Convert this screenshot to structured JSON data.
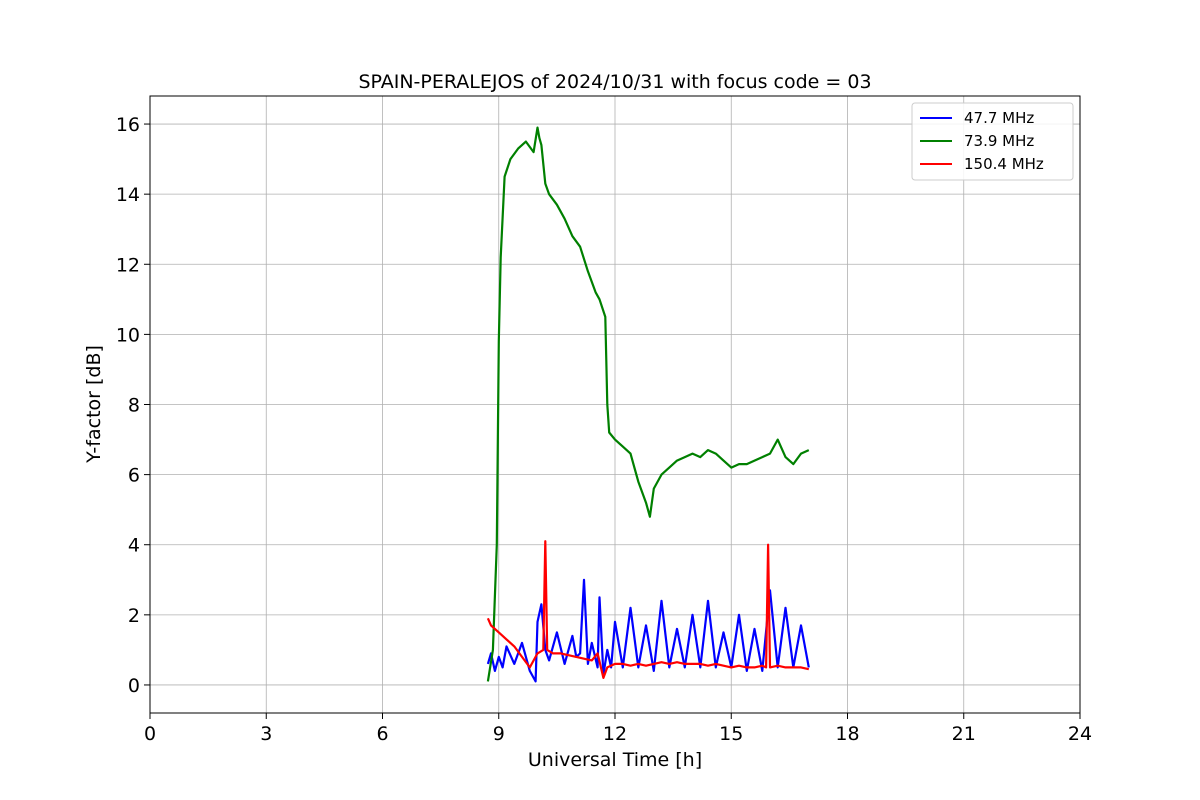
{
  "chart_data": {
    "type": "line",
    "title": "SPAIN-PERALEJOS of 2024/10/31 with focus code = 03",
    "xlabel": "Universal Time [h]",
    "ylabel": "Y-factor [dB]",
    "xlim": [
      0,
      24
    ],
    "ylim": [
      -0.8,
      16.8
    ],
    "xticks": [
      0,
      3,
      6,
      9,
      12,
      15,
      18,
      21,
      24
    ],
    "yticks": [
      0,
      2,
      4,
      6,
      8,
      10,
      12,
      14,
      16
    ],
    "grid": true,
    "legend_position": "top-right",
    "series": [
      {
        "name": " 47.7 MHz",
        "color": "#0000ff",
        "x": [
          8.72,
          8.8,
          8.9,
          9.0,
          9.1,
          9.2,
          9.4,
          9.6,
          9.8,
          9.95,
          10.0,
          10.1,
          10.2,
          10.3,
          10.5,
          10.7,
          10.9,
          11.0,
          11.1,
          11.2,
          11.3,
          11.4,
          11.55,
          11.6,
          11.7,
          11.8,
          11.9,
          12.0,
          12.2,
          12.4,
          12.6,
          12.8,
          13.0,
          13.2,
          13.4,
          13.6,
          13.8,
          14.0,
          14.2,
          14.4,
          14.6,
          14.8,
          15.0,
          15.2,
          15.4,
          15.6,
          15.8,
          16.0,
          16.2,
          16.4,
          16.6,
          16.8,
          17.0
        ],
        "y": [
          0.6,
          0.9,
          0.4,
          0.8,
          0.5,
          1.1,
          0.6,
          1.2,
          0.4,
          0.1,
          1.8,
          2.3,
          1.0,
          0.7,
          1.5,
          0.6,
          1.4,
          0.8,
          0.9,
          3.0,
          0.6,
          1.2,
          0.5,
          2.5,
          0.3,
          1.0,
          0.5,
          1.8,
          0.5,
          2.2,
          0.5,
          1.7,
          0.4,
          2.4,
          0.5,
          1.6,
          0.5,
          2.0,
          0.5,
          2.4,
          0.5,
          1.5,
          0.5,
          2.0,
          0.4,
          1.6,
          0.4,
          2.7,
          0.5,
          2.2,
          0.5,
          1.7,
          0.5
        ]
      },
      {
        "name": " 73.9 MHz",
        "color": "#008000",
        "x": [
          8.72,
          8.85,
          8.95,
          9.0,
          9.05,
          9.15,
          9.3,
          9.5,
          9.7,
          9.9,
          10.0,
          10.05,
          10.1,
          10.2,
          10.3,
          10.5,
          10.7,
          10.9,
          11.1,
          11.3,
          11.5,
          11.6,
          11.75,
          11.8,
          11.85,
          12.0,
          12.2,
          12.4,
          12.6,
          12.8,
          12.9,
          13.0,
          13.2,
          13.4,
          13.6,
          13.8,
          14.0,
          14.2,
          14.4,
          14.6,
          14.8,
          15.0,
          15.2,
          15.4,
          15.6,
          15.8,
          16.0,
          16.2,
          16.4,
          16.6,
          16.8,
          17.0
        ],
        "y": [
          0.1,
          1.0,
          4.0,
          9.8,
          12.2,
          14.5,
          15.0,
          15.3,
          15.5,
          15.2,
          15.9,
          15.6,
          15.4,
          14.3,
          14.0,
          13.7,
          13.3,
          12.8,
          12.5,
          11.8,
          11.2,
          11.0,
          10.5,
          8.0,
          7.2,
          7.0,
          6.8,
          6.6,
          5.8,
          5.2,
          4.8,
          5.6,
          6.0,
          6.2,
          6.4,
          6.5,
          6.6,
          6.5,
          6.7,
          6.6,
          6.4,
          6.2,
          6.3,
          6.3,
          6.4,
          6.5,
          6.6,
          7.0,
          6.5,
          6.3,
          6.6,
          6.7
        ]
      },
      {
        "name": "150.4 MHz",
        "color": "#ff0000",
        "x": [
          8.72,
          8.8,
          9.0,
          9.2,
          9.4,
          9.6,
          9.8,
          10.0,
          10.15,
          10.2,
          10.25,
          10.4,
          10.6,
          10.8,
          11.0,
          11.2,
          11.4,
          11.55,
          11.7,
          11.8,
          12.0,
          12.2,
          12.4,
          12.6,
          12.8,
          13.0,
          13.2,
          13.4,
          13.6,
          13.8,
          14.0,
          14.2,
          14.4,
          14.6,
          14.8,
          15.0,
          15.2,
          15.4,
          15.6,
          15.8,
          15.9,
          15.95,
          16.0,
          16.2,
          16.4,
          16.6,
          16.8,
          17.0
        ],
        "y": [
          1.9,
          1.7,
          1.5,
          1.3,
          1.1,
          0.8,
          0.5,
          0.9,
          1.0,
          4.1,
          1.0,
          0.9,
          0.9,
          0.85,
          0.8,
          0.75,
          0.7,
          0.9,
          0.2,
          0.5,
          0.6,
          0.6,
          0.55,
          0.6,
          0.55,
          0.6,
          0.65,
          0.6,
          0.65,
          0.6,
          0.6,
          0.6,
          0.55,
          0.6,
          0.55,
          0.5,
          0.55,
          0.5,
          0.5,
          0.55,
          0.5,
          4.0,
          0.5,
          0.55,
          0.5,
          0.5,
          0.5,
          0.45
        ]
      }
    ]
  }
}
